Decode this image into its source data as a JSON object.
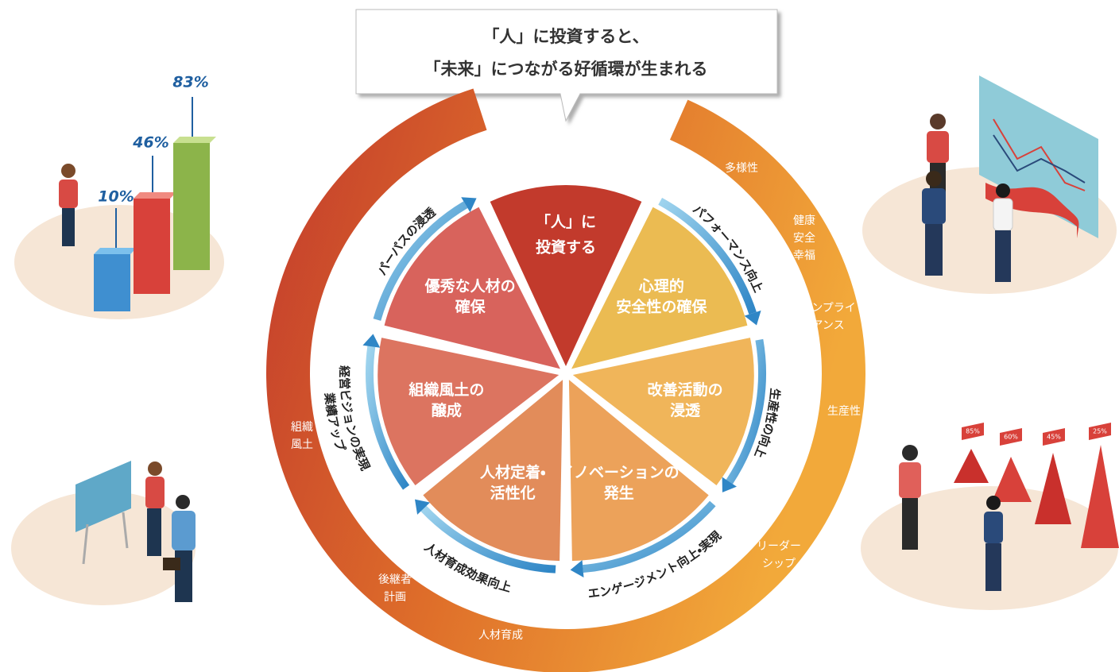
{
  "callout": {
    "lines": [
      "「人」に投資すると、",
      "「未来」につながる好循環が生まれる"
    ]
  },
  "center": {
    "lines": [
      "「人」に",
      "投資する"
    ]
  },
  "wedges": [
    {
      "lines": [
        "心理的",
        "安全性の確保"
      ]
    },
    {
      "lines": [
        "改善活動の",
        "浸透"
      ]
    },
    {
      "lines": [
        "イノベーションの",
        "発生"
      ]
    },
    {
      "lines": [
        "人材定着・",
        "活性化"
      ]
    },
    {
      "lines": [
        "組織風土の",
        "醸成"
      ]
    },
    {
      "lines": [
        "優秀な人材の",
        "確保"
      ]
    }
  ],
  "flows": [
    {
      "lines": [
        "パフォーマンス向上"
      ]
    },
    {
      "lines": [
        "生産性の向上"
      ]
    },
    {
      "lines": [
        "エンゲージメント向上・実現"
      ]
    },
    {
      "lines": [
        "人材育成効果向上"
      ]
    },
    {
      "lines": [
        "経営ビジョンの実現",
        "業績アップ"
      ]
    },
    {
      "lines": [
        "パーパスの浸透"
      ]
    }
  ],
  "outer": [
    {
      "lines": [
        "多様性"
      ]
    },
    {
      "lines": [
        "健康",
        "安全",
        "幸福"
      ]
    },
    {
      "lines": [
        "コンプライ",
        "アンス"
      ]
    },
    {
      "lines": [
        "生産性"
      ]
    },
    {
      "lines": [
        "リーダー",
        "シップ"
      ]
    },
    {
      "lines": [
        "人材育成"
      ]
    },
    {
      "lines": [
        "後継者",
        "計画"
      ]
    },
    {
      "lines": [
        "組織",
        "風土"
      ]
    }
  ],
  "illustrations": {
    "bar_labels": [
      "10%",
      "46%",
      "83%"
    ],
    "pyramid_labels": [
      "85%",
      "60%",
      "45%",
      "25%"
    ]
  }
}
